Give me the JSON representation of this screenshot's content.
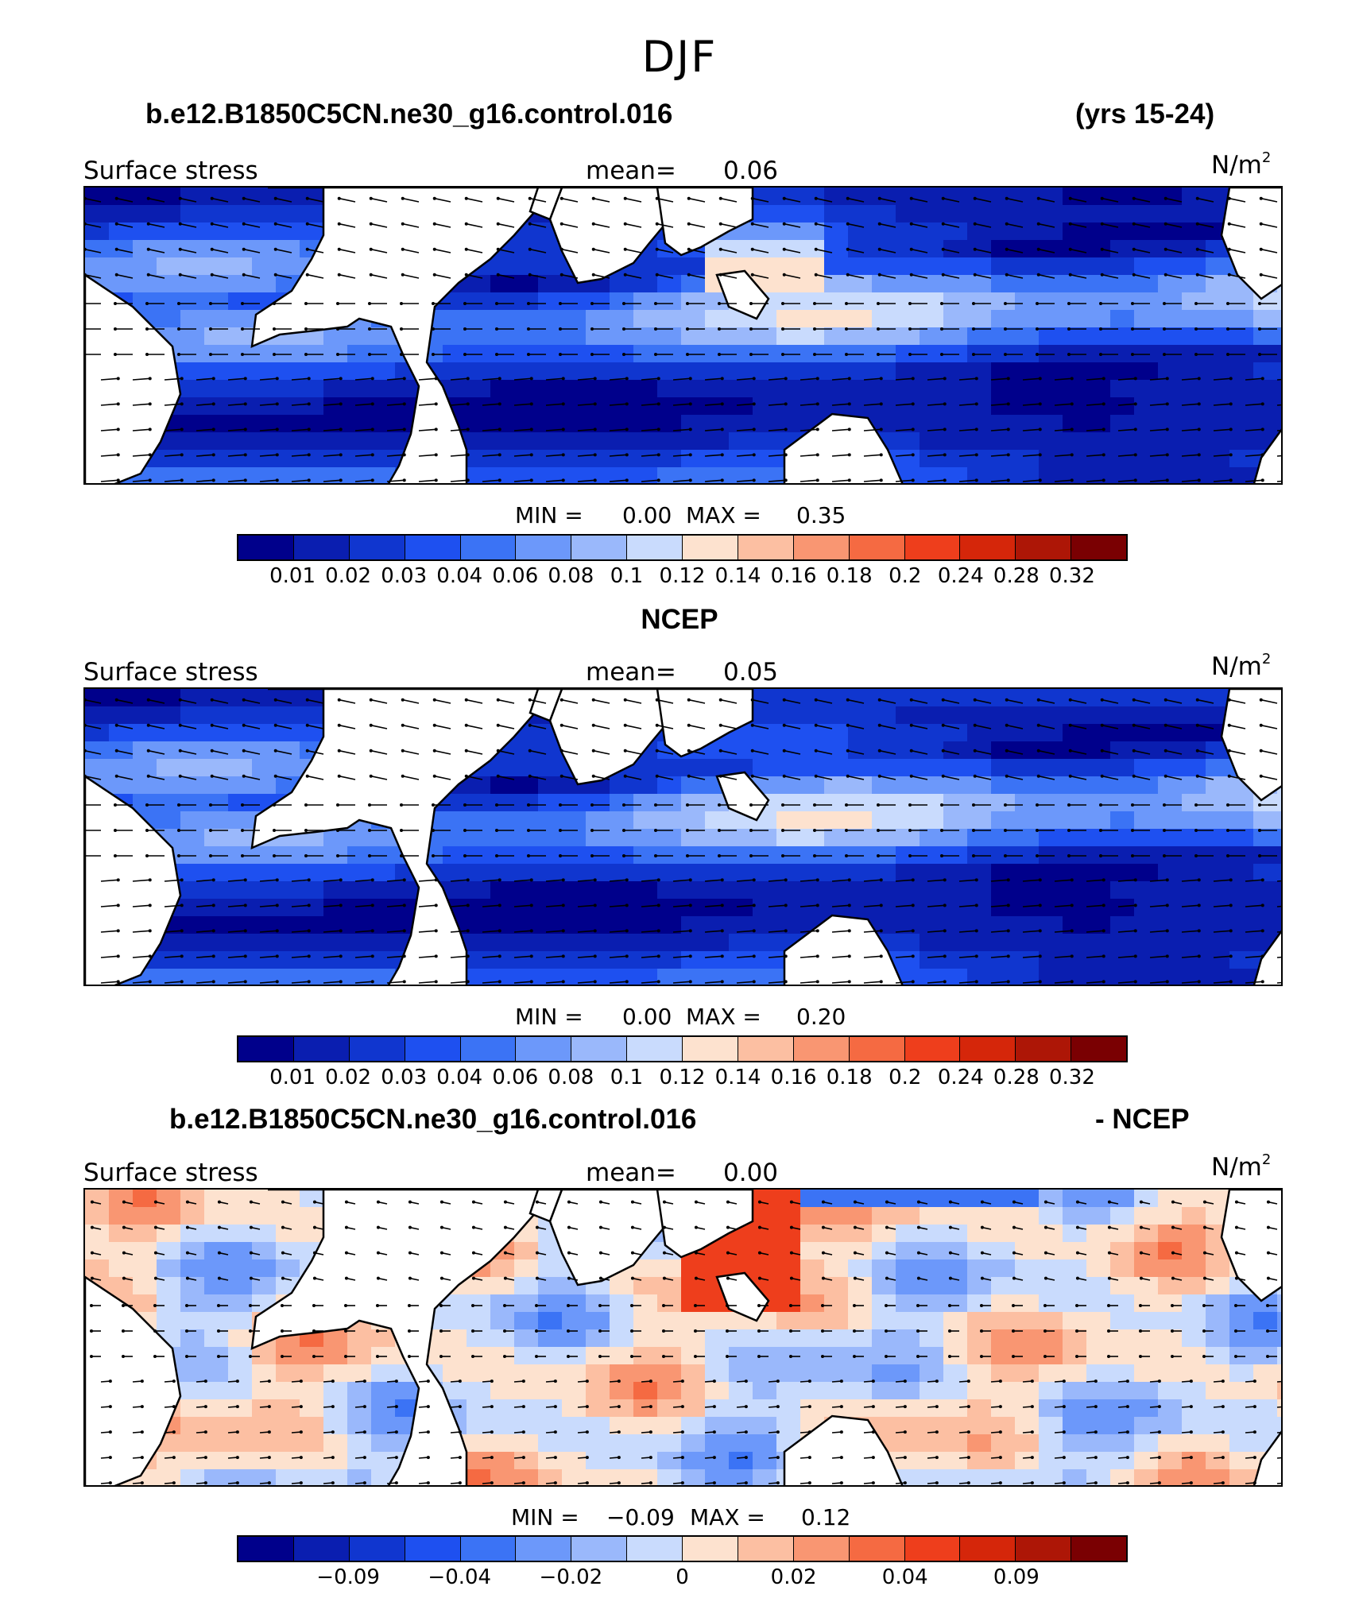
{
  "main_title": "DJF",
  "palette": [
    "#00008b",
    "#0a1eb0",
    "#1036cf",
    "#1e50f0",
    "#3b73f5",
    "#6c98fa",
    "#9ab8fb",
    "#c9dbfd",
    "#fde2cf",
    "#fcbfa2",
    "#f99672",
    "#f56a42",
    "#ee3e1c",
    "#d5260a",
    "#ad1606",
    "#7a0002"
  ],
  "colorbar_ticks_main": [
    "0.01",
    "0.02",
    "0.03",
    "0.04",
    "0.06",
    "0.08",
    "0.1",
    "0.12",
    "0.14",
    "0.16",
    "0.18",
    "0.2",
    "0.24",
    "0.28",
    "0.32"
  ],
  "colorbar_ticks_diff": [
    "−0.09",
    "−0.04",
    "−0.02",
    "0",
    "0.02",
    "0.04",
    "0.09"
  ],
  "panels": [
    {
      "title_left": "b.e12.B1850C5CN.ne30_g16.control.016",
      "title_right": "(yrs 15-24)",
      "var_label": "Surface stress",
      "mean_label": "mean=",
      "mean_value": "0.06",
      "units": "N/m",
      "units_sup": "2",
      "min_label": "MIN =",
      "min_value": "0.00",
      "max_label": "MAX =",
      "max_value": "0.35"
    },
    {
      "title_left": "NCEP",
      "title_right": "",
      "var_label": "Surface stress",
      "mean_label": "mean=",
      "mean_value": "0.05",
      "units": "N/m",
      "units_sup": "2",
      "min_label": "MIN =",
      "min_value": "0.00",
      "max_label": "MAX =",
      "max_value": "0.20"
    },
    {
      "title_left": "b.e12.B1850C5CN.ne30_g16.control.016",
      "title_right": "- NCEP",
      "var_label": "Surface stress",
      "mean_label": "mean=",
      "mean_value": "0.00",
      "units": "N/m",
      "units_sup": "2",
      "min_label": "MIN =",
      "min_value": "−0.09",
      "max_label": "MAX =",
      "max_value": "0.12"
    }
  ]
}
